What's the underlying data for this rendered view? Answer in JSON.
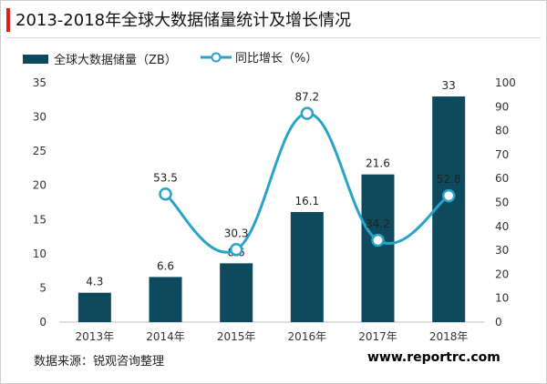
{
  "title": "2013-2018年全球大数据储量统计及增长情况",
  "legend": {
    "bar_label": "全球大数据储量（ZB）",
    "line_label": "同比增长（%）"
  },
  "colors": {
    "bar": "#0d4a5e",
    "line": "#2aa3c9",
    "accent": "#e02020"
  },
  "chart_data": {
    "type": "bar",
    "categories": [
      "2013年",
      "2014年",
      "2015年",
      "2016年",
      "2017年",
      "2018年"
    ],
    "series": [
      {
        "name": "全球大数据储量（ZB）",
        "type": "bar",
        "axis": "left",
        "values": [
          4.3,
          6.6,
          8.6,
          16.1,
          21.6,
          33
        ]
      },
      {
        "name": "同比增长（%）",
        "type": "line",
        "smooth": true,
        "axis": "right",
        "values": [
          null,
          53.5,
          30.3,
          87.2,
          34.2,
          52.8
        ]
      }
    ],
    "bar_labels": [
      "4.3",
      "6.6",
      "8.6",
      "16.1",
      "21.6",
      "33"
    ],
    "line_labels": [
      "",
      "53.5",
      "30.3",
      "87.2",
      "34.2",
      "52.8"
    ],
    "ylim_left": [
      0,
      35
    ],
    "yticks_left": [
      "0",
      "5",
      "10",
      "15",
      "20",
      "25",
      "30",
      "35"
    ],
    "ylim_right": [
      0,
      100
    ],
    "yticks_right": [
      "0",
      "10",
      "20",
      "30",
      "40",
      "50",
      "60",
      "70",
      "80",
      "90",
      "100"
    ],
    "grid": false,
    "legend_position": "top-left"
  },
  "footer": {
    "source": "数据来源：锐观咨询整理",
    "site": "www.reportrc.com"
  }
}
